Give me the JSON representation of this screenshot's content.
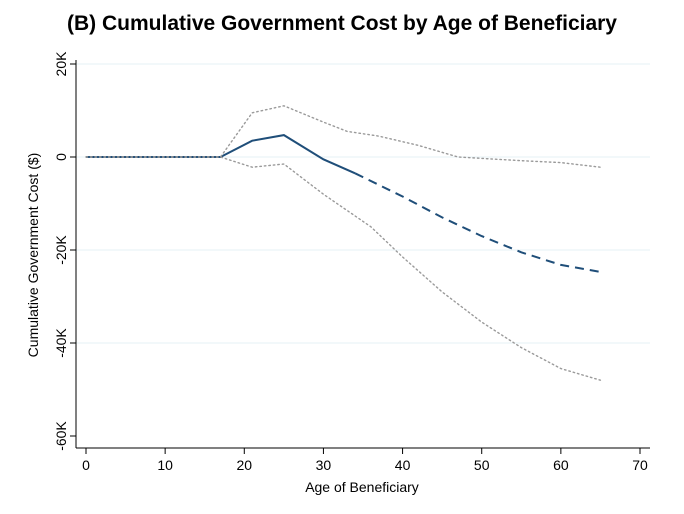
{
  "chart_data": {
    "type": "line",
    "title": "(B) Cumulative Government Cost by Age of Beneficiary",
    "xlabel": "Age of Beneficiary",
    "ylabel": "Cumulative Government Cost ($)",
    "xlim": [
      0,
      70
    ],
    "ylim": [
      -60000,
      20000
    ],
    "x_ticks": [
      0,
      10,
      20,
      30,
      40,
      50,
      60,
      70
    ],
    "x_tick_labels": [
      "0",
      "10",
      "20",
      "30",
      "40",
      "50",
      "60",
      "70"
    ],
    "y_ticks": [
      -60000,
      -40000,
      -20000,
      0,
      20000
    ],
    "y_tick_labels": [
      "-60K",
      "-40K",
      "-20K",
      "0",
      "20K"
    ],
    "grid": "horizontal",
    "colors": {
      "estimate": "#1f4e79",
      "ci": "#9a9a9a",
      "grid": "#e6f0f5"
    },
    "series": [
      {
        "role": "estimate-observed",
        "style": "solid",
        "x": [
          0,
          17,
          21,
          25,
          30,
          34
        ],
        "y": [
          0,
          0,
          3500,
          4700,
          -500,
          -3500
        ]
      },
      {
        "role": "estimate-projected",
        "style": "dashed",
        "x": [
          34,
          40,
          45,
          50,
          55,
          60,
          65
        ],
        "y": [
          -3500,
          -8500,
          -13000,
          -17000,
          -20500,
          -23200,
          -24700
        ]
      },
      {
        "role": "ci-upper",
        "style": "dotted",
        "x": [
          0,
          17,
          21,
          25,
          30,
          33,
          37,
          42,
          47,
          55,
          60,
          65
        ],
        "y": [
          0,
          0,
          9500,
          11000,
          7500,
          5500,
          4500,
          2500,
          0,
          -800,
          -1200,
          -2200
        ]
      },
      {
        "role": "ci-lower",
        "style": "dotted",
        "x": [
          0,
          17,
          21,
          25,
          30,
          36,
          40,
          45,
          50,
          55,
          60,
          65
        ],
        "y": [
          0,
          0,
          -2200,
          -1500,
          -8000,
          -15000,
          -21500,
          -29000,
          -35500,
          -41000,
          -45500,
          -48000
        ]
      }
    ]
  }
}
